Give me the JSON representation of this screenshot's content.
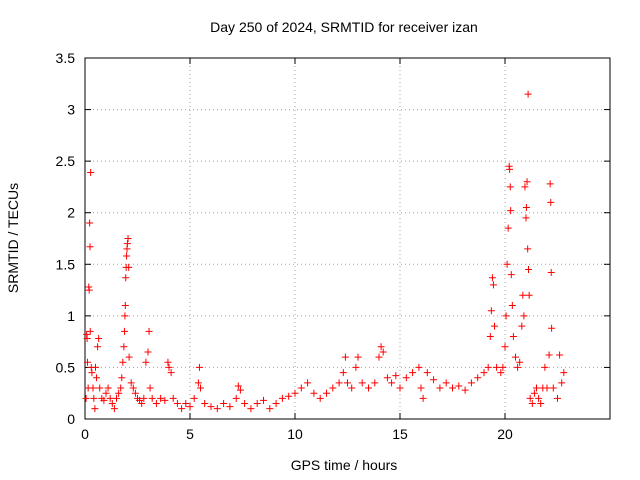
{
  "chart_data": {
    "type": "scatter",
    "title": "Day 250 of 2024, SRMTID for receiver izan",
    "xlabel": "GPS time / hours",
    "ylabel": "SRMTID / TECUs",
    "xlim": [
      0,
      25
    ],
    "ylim": [
      0,
      3.5
    ],
    "xticks": [
      0,
      5,
      10,
      15,
      20
    ],
    "xtick_labels": [
      "0",
      "5",
      "10",
      "15",
      "20"
    ],
    "yticks": [
      0,
      0.5,
      1,
      1.5,
      2,
      2.5,
      3,
      3.5
    ],
    "ytick_labels": [
      "0",
      "0.5",
      "1",
      "1.5",
      "2",
      "2.5",
      "3",
      "3.5"
    ],
    "grid": true,
    "marker": "+",
    "color": "#ff0000",
    "series": [
      {
        "name": "SRMTID",
        "points": [
          [
            0.05,
            0.2
          ],
          [
            0.08,
            0.82
          ],
          [
            0.1,
            0.78
          ],
          [
            0.12,
            0.55
          ],
          [
            0.15,
            0.3
          ],
          [
            0.18,
            1.28
          ],
          [
            0.2,
            1.25
          ],
          [
            0.22,
            1.9
          ],
          [
            0.24,
            1.67
          ],
          [
            0.25,
            0.85
          ],
          [
            0.27,
            2.39
          ],
          [
            0.3,
            0.5
          ],
          [
            0.33,
            0.45
          ],
          [
            0.38,
            0.3
          ],
          [
            0.42,
            0.2
          ],
          [
            0.47,
            0.1
          ],
          [
            0.5,
            0.5
          ],
          [
            0.55,
            0.4
          ],
          [
            0.6,
            0.7
          ],
          [
            0.65,
            0.78
          ],
          [
            0.7,
            0.3
          ],
          [
            0.8,
            0.2
          ],
          [
            0.9,
            0.18
          ],
          [
            1.0,
            0.25
          ],
          [
            1.1,
            0.3
          ],
          [
            1.2,
            0.2
          ],
          [
            1.3,
            0.15
          ],
          [
            1.4,
            0.1
          ],
          [
            1.5,
            0.2
          ],
          [
            1.6,
            0.25
          ],
          [
            1.7,
            0.3
          ],
          [
            1.75,
            0.4
          ],
          [
            1.8,
            0.55
          ],
          [
            1.85,
            0.7
          ],
          [
            1.88,
            0.85
          ],
          [
            1.9,
            1.0
          ],
          [
            1.92,
            1.1
          ],
          [
            1.94,
            1.37
          ],
          [
            1.96,
            1.47
          ],
          [
            1.98,
            1.58
          ],
          [
            2.0,
            1.65
          ],
          [
            2.02,
            1.7
          ],
          [
            2.05,
            1.75
          ],
          [
            2.08,
            1.47
          ],
          [
            2.1,
            0.6
          ],
          [
            2.2,
            0.35
          ],
          [
            2.3,
            0.3
          ],
          [
            2.4,
            0.25
          ],
          [
            2.5,
            0.2
          ],
          [
            2.6,
            0.18
          ],
          [
            2.7,
            0.15
          ],
          [
            2.8,
            0.2
          ],
          [
            2.9,
            0.55
          ],
          [
            3.0,
            0.65
          ],
          [
            3.05,
            0.85
          ],
          [
            3.1,
            0.3
          ],
          [
            3.2,
            0.2
          ],
          [
            3.4,
            0.15
          ],
          [
            3.6,
            0.2
          ],
          [
            3.8,
            0.18
          ],
          [
            3.95,
            0.55
          ],
          [
            4.0,
            0.5
          ],
          [
            4.1,
            0.45
          ],
          [
            4.2,
            0.2
          ],
          [
            4.4,
            0.15
          ],
          [
            4.6,
            0.1
          ],
          [
            4.8,
            0.15
          ],
          [
            5.0,
            0.12
          ],
          [
            5.2,
            0.2
          ],
          [
            5.4,
            0.35
          ],
          [
            5.45,
            0.5
          ],
          [
            5.5,
            0.3
          ],
          [
            5.7,
            0.15
          ],
          [
            6.0,
            0.12
          ],
          [
            6.3,
            0.1
          ],
          [
            6.6,
            0.15
          ],
          [
            6.9,
            0.12
          ],
          [
            7.2,
            0.2
          ],
          [
            7.3,
            0.32
          ],
          [
            7.4,
            0.28
          ],
          [
            7.6,
            0.15
          ],
          [
            7.9,
            0.1
          ],
          [
            8.2,
            0.15
          ],
          [
            8.5,
            0.18
          ],
          [
            8.8,
            0.1
          ],
          [
            9.1,
            0.15
          ],
          [
            9.4,
            0.2
          ],
          [
            9.7,
            0.22
          ],
          [
            10.0,
            0.25
          ],
          [
            10.3,
            0.3
          ],
          [
            10.6,
            0.35
          ],
          [
            10.9,
            0.25
          ],
          [
            11.2,
            0.2
          ],
          [
            11.5,
            0.25
          ],
          [
            11.8,
            0.3
          ],
          [
            12.1,
            0.35
          ],
          [
            12.3,
            0.45
          ],
          [
            12.4,
            0.6
          ],
          [
            12.5,
            0.35
          ],
          [
            12.7,
            0.3
          ],
          [
            12.9,
            0.5
          ],
          [
            13.0,
            0.6
          ],
          [
            13.2,
            0.35
          ],
          [
            13.5,
            0.3
          ],
          [
            13.8,
            0.35
          ],
          [
            14.0,
            0.6
          ],
          [
            14.1,
            0.7
          ],
          [
            14.2,
            0.65
          ],
          [
            14.4,
            0.4
          ],
          [
            14.6,
            0.35
          ],
          [
            14.8,
            0.42
          ],
          [
            15.0,
            0.3
          ],
          [
            15.3,
            0.4
          ],
          [
            15.6,
            0.45
          ],
          [
            15.9,
            0.5
          ],
          [
            16.0,
            0.3
          ],
          [
            16.1,
            0.2
          ],
          [
            16.3,
            0.45
          ],
          [
            16.6,
            0.38
          ],
          [
            16.9,
            0.3
          ],
          [
            17.2,
            0.35
          ],
          [
            17.5,
            0.3
          ],
          [
            17.8,
            0.32
          ],
          [
            18.1,
            0.28
          ],
          [
            18.4,
            0.35
          ],
          [
            18.7,
            0.4
          ],
          [
            19.0,
            0.45
          ],
          [
            19.2,
            0.5
          ],
          [
            19.3,
            0.8
          ],
          [
            19.35,
            1.05
          ],
          [
            19.4,
            1.37
          ],
          [
            19.45,
            1.3
          ],
          [
            19.5,
            0.9
          ],
          [
            19.6,
            0.5
          ],
          [
            19.8,
            0.45
          ],
          [
            19.9,
            0.5
          ],
          [
            20.0,
            0.7
          ],
          [
            20.05,
            1.0
          ],
          [
            20.1,
            1.5
          ],
          [
            20.15,
            1.85
          ],
          [
            20.2,
            2.45
          ],
          [
            20.22,
            2.42
          ],
          [
            20.25,
            2.25
          ],
          [
            20.27,
            2.02
          ],
          [
            20.3,
            1.4
          ],
          [
            20.35,
            1.1
          ],
          [
            20.4,
            0.8
          ],
          [
            20.5,
            0.6
          ],
          [
            20.6,
            0.5
          ],
          [
            20.7,
            0.55
          ],
          [
            20.8,
            0.9
          ],
          [
            20.85,
            1.2
          ],
          [
            20.9,
            1.0
          ],
          [
            20.95,
            2.25
          ],
          [
            21.0,
            1.95
          ],
          [
            21.02,
            2.05
          ],
          [
            21.05,
            2.3
          ],
          [
            21.08,
            1.65
          ],
          [
            21.1,
            3.15
          ],
          [
            21.12,
            1.45
          ],
          [
            21.15,
            1.2
          ],
          [
            21.2,
            0.2
          ],
          [
            21.3,
            0.15
          ],
          [
            21.4,
            0.25
          ],
          [
            21.5,
            0.3
          ],
          [
            21.6,
            0.2
          ],
          [
            21.7,
            0.15
          ],
          [
            21.8,
            0.3
          ],
          [
            21.9,
            0.5
          ],
          [
            22.0,
            0.3
          ],
          [
            22.1,
            0.62
          ],
          [
            22.15,
            2.28
          ],
          [
            22.18,
            2.1
          ],
          [
            22.2,
            1.42
          ],
          [
            22.22,
            0.88
          ],
          [
            22.3,
            0.3
          ],
          [
            22.5,
            0.2
          ],
          [
            22.6,
            0.62
          ],
          [
            22.7,
            0.35
          ],
          [
            22.8,
            0.45
          ]
        ]
      }
    ]
  }
}
